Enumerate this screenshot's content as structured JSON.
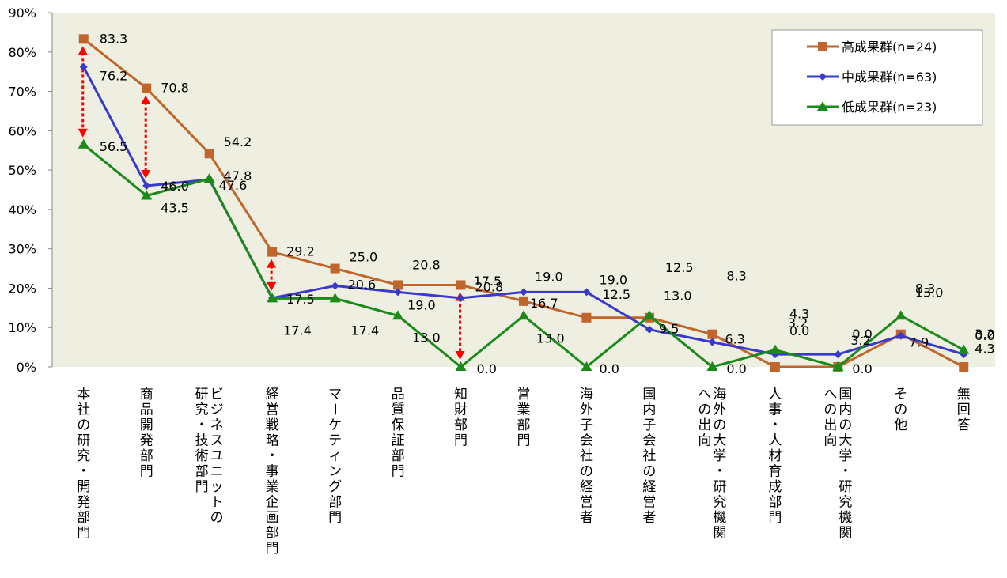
{
  "chart_data": {
    "type": "line",
    "categories": [
      "本社の研究・開発部門",
      "商品開発部門",
      "ビジネスユニットの|研究・技術部門",
      "経営戦略・事業企画部門",
      "マーケティング部門",
      "品質保証部門",
      "知財部門",
      "営業部門",
      "海外子会社の経営者",
      "国内子会社の経営者",
      "海外の大学・研究機関|への出向",
      "人事・人材育成部門",
      "国内の大学・研究機関|への出向",
      "その他",
      "無回答"
    ],
    "series": [
      {
        "name": "高成果群(n=24)",
        "color": "#C0652B",
        "marker": "square",
        "values": [
          83.3,
          70.8,
          54.2,
          29.2,
          25.0,
          20.8,
          20.8,
          16.7,
          12.5,
          12.5,
          8.3,
          0.0,
          0.0,
          8.3,
          0.0
        ],
        "labels": [
          "83.3",
          "70.8",
          "54.2",
          "29.2",
          "25.0",
          "20.8",
          "20.8",
          "16.7",
          "12.5",
          "12.5",
          "8.3",
          "0.0",
          "0.0",
          "8.3",
          "0.0"
        ]
      },
      {
        "name": "中成果群(n=63)",
        "color": "#3A3AC8",
        "marker": "diamond",
        "values": [
          76.2,
          46.0,
          47.6,
          17.5,
          20.6,
          19.0,
          17.5,
          19.0,
          19.0,
          9.5,
          6.3,
          3.2,
          3.2,
          7.9,
          3.2
        ],
        "labels": [
          "76.2",
          "46.0",
          "47.6",
          "17.5",
          "20.6",
          "19.0",
          "17.5",
          "19.0",
          "19.0",
          "9.5",
          "6.3",
          "3.2",
          "3.2",
          "7.9",
          "3.2"
        ]
      },
      {
        "name": "低成果群(n=23)",
        "color": "#1A8A1A",
        "marker": "triangle",
        "values": [
          56.5,
          43.5,
          47.8,
          17.4,
          17.4,
          13.0,
          0.0,
          13.0,
          0.0,
          13.0,
          0.0,
          4.3,
          0.0,
          13.0,
          4.3
        ],
        "labels": [
          "56.5",
          "43.5",
          "47.8",
          "17.4",
          "17.4",
          "13.0",
          "0.0",
          "13.0",
          "0.0",
          "13.0",
          "0.0",
          "4.3",
          "0.0",
          "13.0",
          "4.3"
        ]
      }
    ],
    "y_ticks": [
      "0%",
      "10%",
      "20%",
      "30%",
      "40%",
      "50%",
      "60%",
      "70%",
      "80%",
      "90%"
    ],
    "ylim": [
      0,
      90
    ],
    "grid": false,
    "legend_position": "top-right",
    "plot_background": "#EEEEE1",
    "highlight_arrows_color": "#FF0000",
    "highlight_arrows": [
      {
        "category": "本社の研究・開発部門",
        "from": 83.3,
        "to": 56.5
      },
      {
        "category": "商品開発部門",
        "from": 70.8,
        "to": 46.0
      },
      {
        "category": "経営戦略・事業企画部門",
        "from": 29.2,
        "to": 17.5
      },
      {
        "category": "知財部門",
        "from": 20.8,
        "to": 0.0
      }
    ]
  }
}
